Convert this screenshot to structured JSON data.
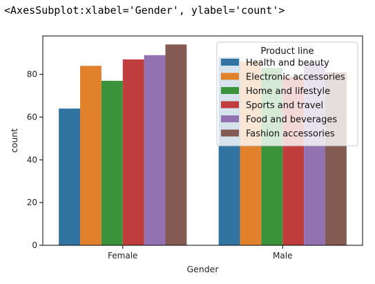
{
  "output_repr": "<AxesSubplot:xlabel='Gender', ylabel='count'>",
  "chart_data": {
    "type": "bar",
    "categories": [
      "Female",
      "Male"
    ],
    "xlabel": "Gender",
    "ylabel": "count",
    "ylim": [
      0,
      98
    ],
    "yticks": [
      0,
      20,
      40,
      60,
      80
    ],
    "legend_title": "Product line",
    "legend_placement": "upper-right",
    "grid": false,
    "series": [
      {
        "name": "Health and beauty",
        "color": "#3274a1",
        "values": [
          64,
          88
        ]
      },
      {
        "name": "Electronic accessories",
        "color": "#e1812c",
        "values": [
          84,
          86
        ]
      },
      {
        "name": "Home and lifestyle",
        "color": "#3a923a",
        "values": [
          77,
          83
        ]
      },
      {
        "name": "Sports and travel",
        "color": "#c03d3e",
        "values": [
          87,
          79
        ]
      },
      {
        "name": "Food and beverages",
        "color": "#9372b2",
        "values": [
          89,
          85
        ]
      },
      {
        "name": "Fashion accessories",
        "color": "#845b53",
        "values": [
          94,
          81
        ]
      }
    ]
  }
}
